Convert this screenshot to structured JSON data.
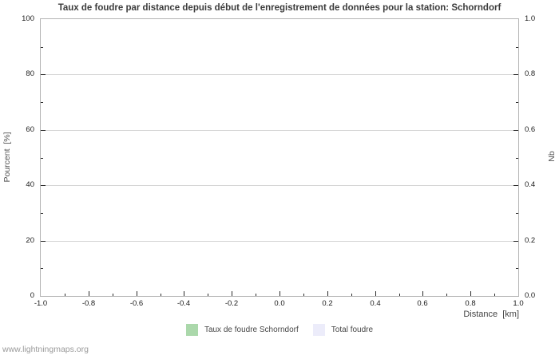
{
  "title": "Taux de foudre par distance depuis début de l'enregistrement de données pour la station: Schorndorf",
  "watermark": "www.lightningmaps.org",
  "axes": {
    "x": {
      "label": "Distance  [km]",
      "ticks": [
        "-1.0",
        "-0.8",
        "-0.6",
        "-0.4",
        "-0.2",
        "0.0",
        "0.2",
        "0.4",
        "0.6",
        "0.8",
        "1.0"
      ]
    },
    "y_left": {
      "label": "Pourcent  [%]",
      "ticks": [
        "0",
        "20",
        "40",
        "60",
        "80",
        "100"
      ]
    },
    "y_right": {
      "label": "Nb",
      "ticks": [
        "0.0",
        "0.2",
        "0.4",
        "0.6",
        "0.8",
        "1.0"
      ]
    }
  },
  "legend": [
    {
      "label": "Taux de foudre Schorndorf",
      "color": "#abd8ab"
    },
    {
      "label": "Total foudre",
      "color": "#ececfa"
    }
  ],
  "colors": {
    "gridline": "#d5d5d5",
    "plot_border": "#b4b4b4",
    "title_text": "#3b3b3b",
    "axis_title_text": "#555555",
    "tick_label_text": "#1c1c1c",
    "watermark_text": "#9a9a9a"
  },
  "chart_data": {
    "type": "bar",
    "title": "Taux de foudre par distance depuis début de l'enregistrement de données pour la station: Schorndorf",
    "xlabel": "Distance [km]",
    "ylabel_left": "Pourcent [%]",
    "ylabel_right": "Nb",
    "xlim": [
      -1.0,
      1.0
    ],
    "ylim_left": [
      0,
      100
    ],
    "ylim_right": [
      0.0,
      1.0
    ],
    "x_tick_step": 0.2,
    "grid": "horizontal-only",
    "legend_position": "bottom-center",
    "series": [
      {
        "name": "Taux de foudre Schorndorf",
        "color": "#abd8ab",
        "x": [],
        "values": []
      },
      {
        "name": "Total foudre",
        "color": "#ececfa",
        "x": [],
        "values": []
      }
    ]
  }
}
